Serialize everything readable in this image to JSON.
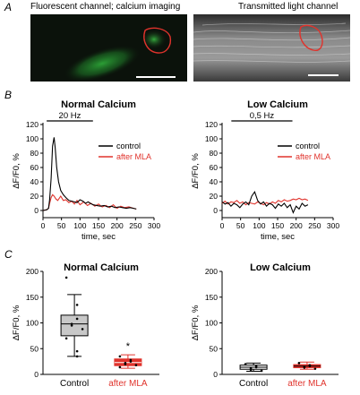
{
  "panels": {
    "a_letter": "A",
    "b_letter": "B",
    "c_letter": "C"
  },
  "images": {
    "fluorescent_caption": "Fluorescent channel; calcium imaging",
    "transmitted_caption": "Transmitted light channel",
    "outline_color": "#e0332c",
    "scalebar_color": "#ffffff",
    "fluor_color": "#2fae3a"
  },
  "colors": {
    "control": "#000000",
    "after_mla": "#e0332c",
    "box_control_fill": "#c8c8c8"
  },
  "chart_data": [
    {
      "type": "line",
      "title": "Normal Calcium",
      "stimulus_label": "20 Hz",
      "stimulus_range": [
        10,
        135
      ],
      "xlabel": "time, sec",
      "ylabel": "ΔF/F0, %",
      "xlim": [
        0,
        300
      ],
      "ylim": [
        -10,
        120
      ],
      "xticks": [
        "0",
        "50",
        "100",
        "150",
        "200",
        "250",
        "300"
      ],
      "yticks": [
        "0",
        "20",
        "40",
        "60",
        "80",
        "100",
        "120"
      ],
      "legend_position": "right",
      "series": [
        {
          "name": "control",
          "x": [
            0,
            10,
            15,
            18,
            22,
            26,
            30,
            33,
            37,
            42,
            48,
            55,
            62,
            70,
            78,
            85,
            92,
            100,
            108,
            115,
            122,
            128,
            135,
            145,
            155,
            165,
            175,
            185,
            195,
            205,
            215,
            225,
            235,
            245,
            252
          ],
          "y": [
            0,
            1,
            3,
            15,
            45,
            90,
            102,
            88,
            60,
            40,
            28,
            22,
            18,
            14,
            13,
            12,
            11,
            15,
            13,
            10,
            12,
            10,
            8,
            7,
            6,
            7,
            5,
            6,
            4,
            5,
            4,
            3,
            4,
            3,
            2
          ]
        },
        {
          "name": "after MLA",
          "x": [
            0,
            10,
            15,
            18,
            22,
            26,
            30,
            35,
            40,
            48,
            55,
            62,
            70,
            78,
            85,
            92,
            100,
            110,
            120,
            130,
            140,
            150,
            160,
            170,
            180,
            190,
            200,
            210,
            220,
            232,
            245,
            252
          ],
          "y": [
            0,
            1,
            3,
            10,
            18,
            22,
            20,
            16,
            14,
            20,
            14,
            15,
            11,
            13,
            9,
            14,
            8,
            12,
            7,
            10,
            6,
            9,
            5,
            7,
            4,
            8,
            3,
            6,
            4,
            5,
            3,
            2
          ]
        }
      ]
    },
    {
      "type": "line",
      "title": "Low Calcium",
      "stimulus_label": "0,5 Hz",
      "stimulus_range": [
        25,
        190
      ],
      "xlabel": "time, sec",
      "ylabel": "ΔF/F0, %",
      "xlim": [
        0,
        300
      ],
      "ylim": [
        -10,
        120
      ],
      "xticks": [
        "0",
        "50",
        "100",
        "150",
        "200",
        "250",
        "300"
      ],
      "yticks": [
        "0",
        "20",
        "40",
        "60",
        "80",
        "100",
        "120"
      ],
      "legend_position": "right",
      "series": [
        {
          "name": "control",
          "x": [
            0,
            8,
            16,
            24,
            32,
            40,
            48,
            56,
            64,
            72,
            80,
            88,
            96,
            104,
            112,
            120,
            128,
            136,
            144,
            152,
            160,
            168,
            176,
            184,
            192,
            200,
            208,
            216,
            224,
            232
          ],
          "y": [
            12,
            9,
            11,
            6,
            10,
            8,
            4,
            9,
            12,
            8,
            20,
            26,
            14,
            9,
            12,
            6,
            10,
            8,
            3,
            9,
            6,
            10,
            4,
            8,
            -3,
            6,
            2,
            10,
            6,
            8
          ]
        },
        {
          "name": "after MLA",
          "x": [
            0,
            8,
            16,
            24,
            32,
            40,
            48,
            56,
            64,
            72,
            80,
            88,
            96,
            104,
            112,
            120,
            128,
            136,
            144,
            152,
            160,
            168,
            176,
            184,
            192,
            200,
            208,
            216,
            224,
            232
          ],
          "y": [
            10,
            13,
            9,
            12,
            11,
            14,
            10,
            12,
            8,
            11,
            10,
            9,
            12,
            10,
            8,
            11,
            9,
            12,
            10,
            14,
            12,
            15,
            13,
            14,
            16,
            15,
            17,
            15,
            16,
            14
          ]
        }
      ]
    },
    {
      "type": "box",
      "title": "Normal Calcium",
      "ylabel": "ΔF/F0, %",
      "ylim": [
        0,
        200
      ],
      "yticks": [
        "0",
        "50",
        "100",
        "150",
        "200"
      ],
      "categories": [
        "Control",
        "after MLA"
      ],
      "boxes": [
        {
          "name": "Control",
          "whisker_low": 35,
          "q1": 75,
          "median": 98,
          "mean": 100,
          "q3": 115,
          "whisker_high": 155,
          "points": [
            188,
            135,
            108,
            98,
            95,
            88,
            70,
            45,
            35
          ]
        },
        {
          "name": "after MLA",
          "whisker_low": 12,
          "q1": 17,
          "median": 23,
          "mean": 23,
          "q3": 30,
          "whisker_high": 38,
          "points": [
            35,
            28,
            25,
            22,
            20,
            18,
            14
          ]
        }
      ],
      "annotation": "*"
    },
    {
      "type": "box",
      "title": "Low Calcium",
      "ylabel": "ΔF/F0, %",
      "ylim": [
        0,
        200
      ],
      "yticks": [
        "0",
        "50",
        "100",
        "150",
        "200"
      ],
      "categories": [
        "Control",
        "after MLA"
      ],
      "boxes": [
        {
          "name": "Control",
          "whisker_low": 6,
          "q1": 10,
          "median": 14,
          "mean": 14,
          "q3": 18,
          "whisker_high": 22,
          "points": [
            20,
            16,
            14,
            12,
            9,
            7
          ]
        },
        {
          "name": "after MLA",
          "whisker_low": 10,
          "q1": 13,
          "median": 16,
          "mean": 16,
          "q3": 19,
          "whisker_high": 24,
          "points": [
            22,
            18,
            16,
            15,
            13,
            11
          ]
        }
      ]
    }
  ]
}
